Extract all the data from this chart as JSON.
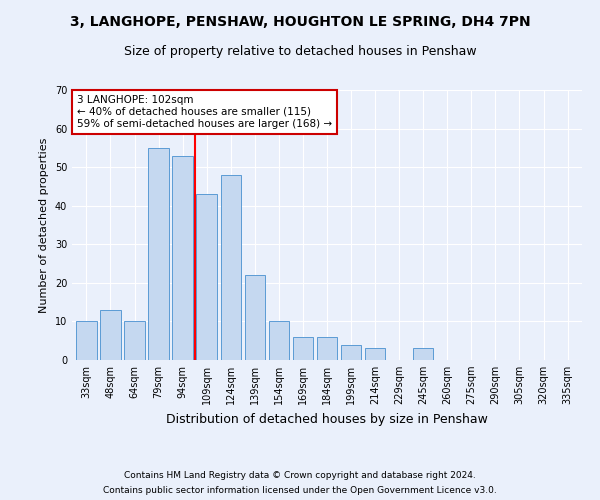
{
  "title1": "3, LANGHOPE, PENSHAW, HOUGHTON LE SPRING, DH4 7PN",
  "title2": "Size of property relative to detached houses in Penshaw",
  "xlabel": "Distribution of detached houses by size in Penshaw",
  "ylabel": "Number of detached properties",
  "categories": [
    "33sqm",
    "48sqm",
    "64sqm",
    "79sqm",
    "94sqm",
    "109sqm",
    "124sqm",
    "139sqm",
    "154sqm",
    "169sqm",
    "184sqm",
    "199sqm",
    "214sqm",
    "229sqm",
    "245sqm",
    "260sqm",
    "275sqm",
    "290sqm",
    "305sqm",
    "320sqm",
    "335sqm"
  ],
  "values": [
    10,
    13,
    10,
    55,
    53,
    43,
    48,
    22,
    10,
    6,
    6,
    4,
    3,
    0,
    3,
    0,
    0,
    0,
    0,
    0,
    0
  ],
  "bar_color": "#c5d8f0",
  "bar_edge_color": "#5b9bd5",
  "red_line_x": 4.5,
  "annotation_line1": "3 LANGHOPE: 102sqm",
  "annotation_line2": "← 40% of detached houses are smaller (115)",
  "annotation_line3": "59% of semi-detached houses are larger (168) →",
  "annotation_box_color": "#ffffff",
  "annotation_box_edge": "#cc0000",
  "ylim": [
    0,
    70
  ],
  "yticks": [
    0,
    10,
    20,
    30,
    40,
    50,
    60,
    70
  ],
  "bg_color": "#eaf0fb",
  "grid_color": "#ffffff",
  "footer1": "Contains HM Land Registry data © Crown copyright and database right 2024.",
  "footer2": "Contains public sector information licensed under the Open Government Licence v3.0.",
  "title1_fontsize": 10,
  "title2_fontsize": 9,
  "xlabel_fontsize": 9,
  "ylabel_fontsize": 8,
  "tick_fontsize": 7,
  "footer_fontsize": 6.5,
  "annotation_fontsize": 7.5
}
